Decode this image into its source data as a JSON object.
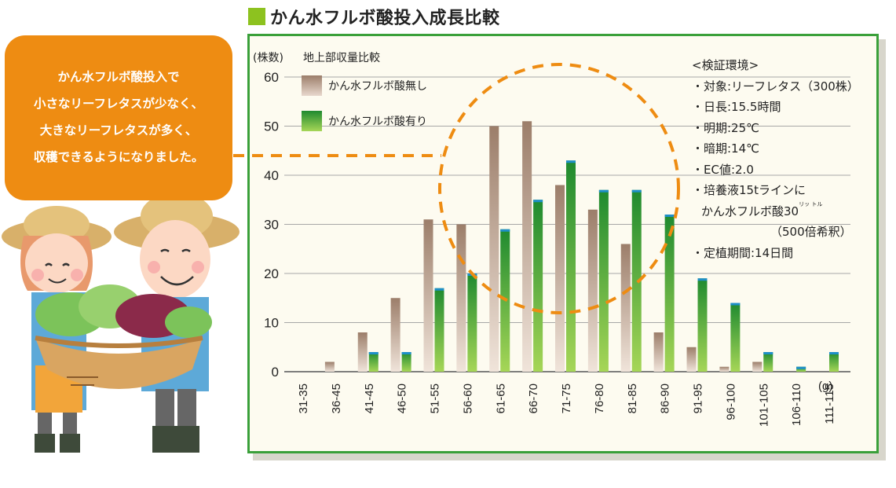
{
  "title": "かん水フルボ酸投入成長比較",
  "bubble_lines": [
    "かん水フルボ酸投入で",
    "小さなリーフレタスが少なく、",
    "大きなリーフレタスが多く、",
    "収穫できるようになりました。"
  ],
  "notes": {
    "heading": "<検証環境>",
    "items": [
      "・対象:リーフレタス（300株）",
      "・日長:15.5時間",
      "・明期:25℃",
      "・暗期:14℃",
      "・EC値:2.0",
      "・培養液15tラインに",
      "かん水フルボ酸30",
      "（500倍希釈）",
      "・定植期間:14日間"
    ],
    "unit_ruby": "リッ トル"
  },
  "colors": {
    "accent_green": "#8dc21f",
    "panel_border": "#3aa03a",
    "bubble": "#ee8c12",
    "bar_without_top": "#9c7e6a",
    "bar_with_top": "#1f8a2f",
    "bar_with_cap": "#1e8fc8",
    "highlight_dash": "#ee8c12"
  },
  "chart_data": {
    "type": "bar",
    "subtitle": "地上部収量比較",
    "ylabel": "(株数)",
    "xunit": "(g)",
    "ylim": [
      0,
      60
    ],
    "yticks": [
      0,
      10,
      20,
      30,
      40,
      50,
      60
    ],
    "grid": true,
    "legend_position": "top-left",
    "categories": [
      "31-35",
      "36-45",
      "41-45",
      "46-50",
      "51-55",
      "56-60",
      "61-65",
      "66-70",
      "71-75",
      "76-80",
      "81-85",
      "86-90",
      "91-95",
      "96-100",
      "101-105",
      "106-110",
      "111-115"
    ],
    "series": [
      {
        "name": "かん水フルボ酸無し",
        "values": [
          0,
          2,
          8,
          15,
          31,
          30,
          50,
          51,
          38,
          33,
          26,
          8,
          5,
          1,
          2,
          0,
          0
        ]
      },
      {
        "name": "かん水フルボ酸有り",
        "values": [
          0,
          0,
          4,
          4,
          17,
          20,
          29,
          35,
          43,
          37,
          37,
          32,
          19,
          14,
          4,
          1,
          4
        ]
      }
    ]
  }
}
